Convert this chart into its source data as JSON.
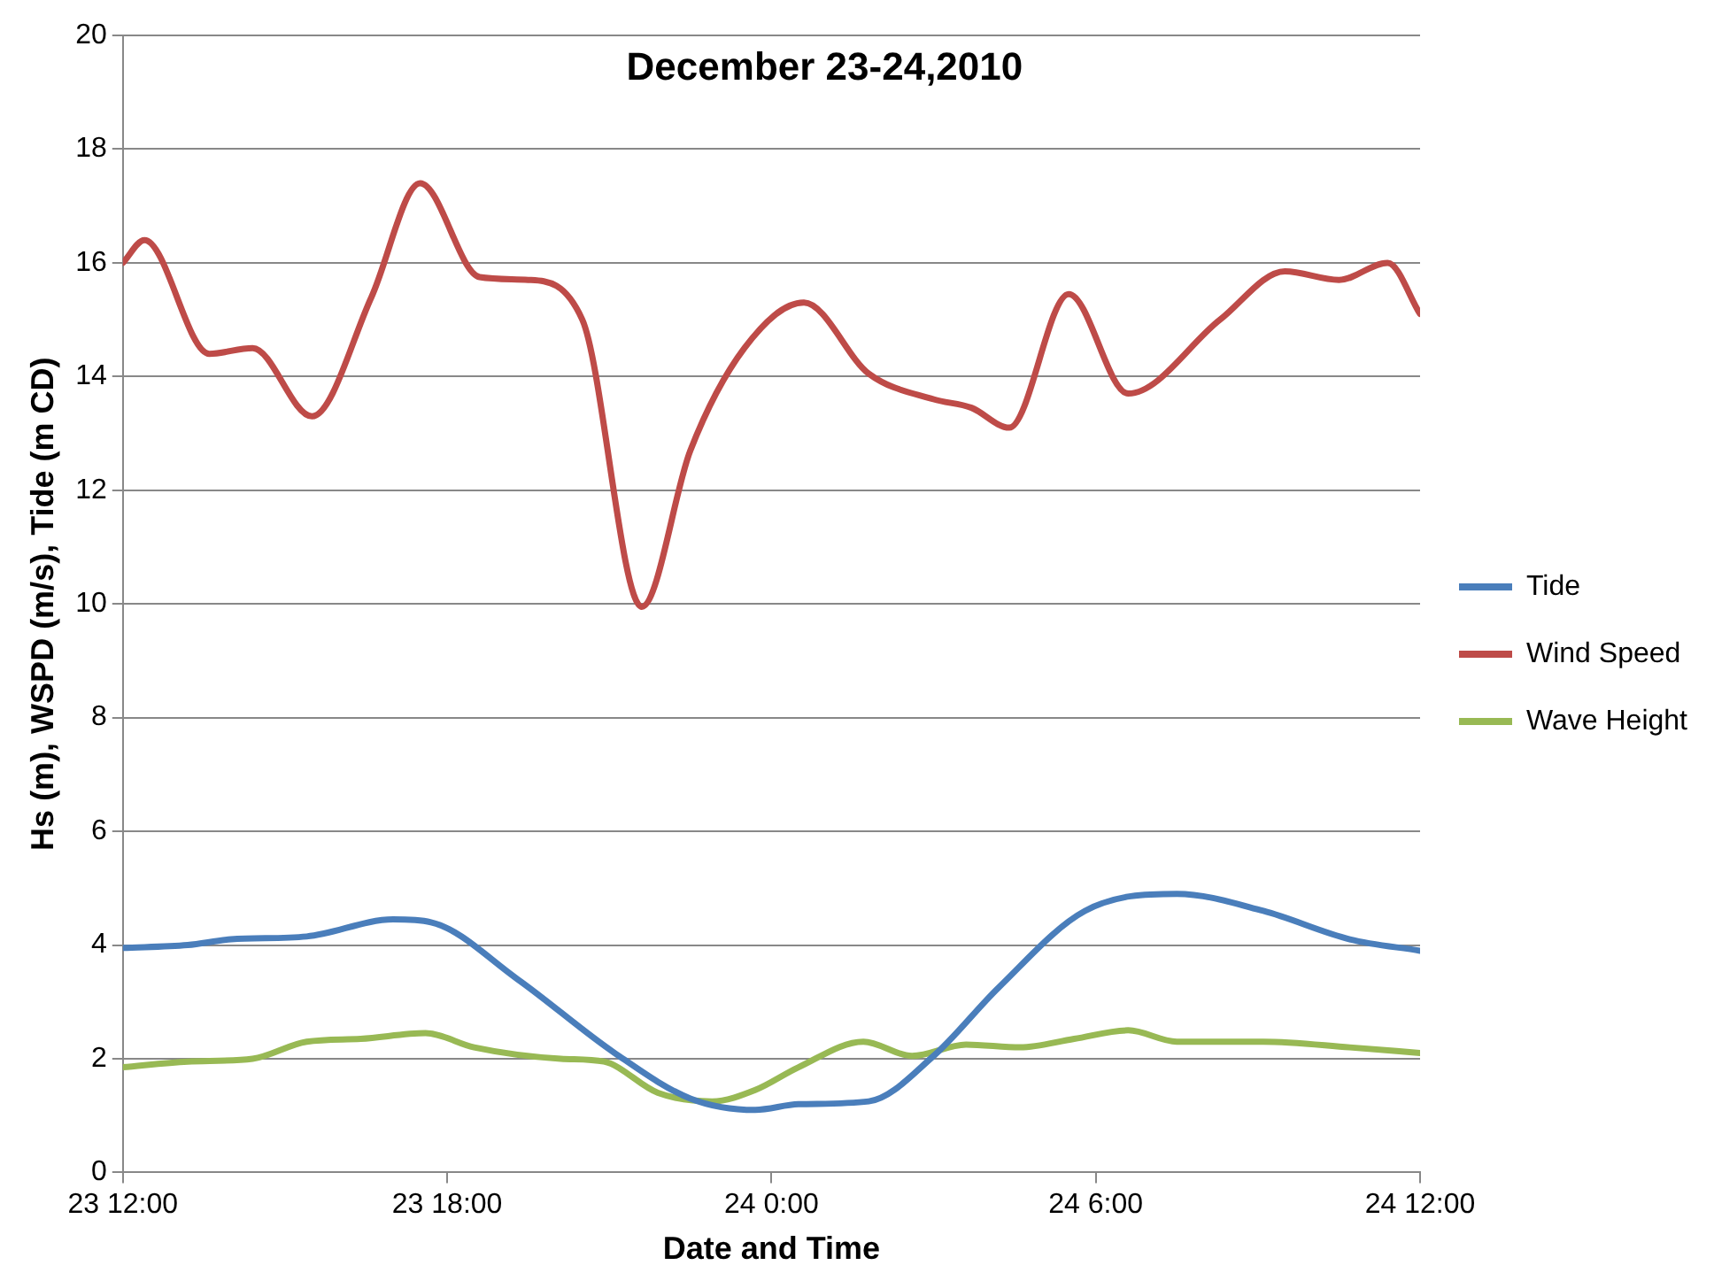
{
  "chart_data": {
    "type": "line",
    "title": "December 23-24,2010",
    "xlabel": "Date and Time",
    "ylabel": "Hs (m), WSPD (m/s), Tide (m CD)",
    "xlim": [
      "2010-12-23T12:00",
      "2010-12-24T12:00"
    ],
    "xticks": [
      {
        "value": "2010-12-23T12:00",
        "label": "23 12:00"
      },
      {
        "value": "2010-12-23T18:00",
        "label": "23 18:00"
      },
      {
        "value": "2010-12-24T00:00",
        "label": "24 0:00"
      },
      {
        "value": "2010-12-24T06:00",
        "label": "24 6:00"
      },
      {
        "value": "2010-12-24T12:00",
        "label": "24 12:00"
      }
    ],
    "ylim": [
      0,
      20
    ],
    "yticks": [
      0,
      2,
      4,
      6,
      8,
      10,
      12,
      14,
      16,
      18,
      20
    ],
    "grid": "y",
    "legend": "right",
    "marker": "none",
    "line_style": "solid",
    "series": [
      {
        "name": "Tide",
        "color": "#4a7ebb",
        "x": [
          "2010-12-23T12:00",
          "2010-12-23T13:12",
          "2010-12-23T14:00",
          "2010-12-23T15:24",
          "2010-12-23T17:00",
          "2010-12-23T17:42",
          "2010-12-23T19:18",
          "2010-12-23T21:06",
          "2010-12-23T22:30",
          "2010-12-23T23:42",
          "2010-12-24T00:30",
          "2010-12-24T01:48",
          "2010-12-24T03:00",
          "2010-12-24T04:12",
          "2010-12-24T05:48",
          "2010-12-24T07:30",
          "2010-12-24T09:06",
          "2010-12-24T10:42",
          "2010-12-24T12:00"
        ],
        "values": [
          3.95,
          4.0,
          4.1,
          4.15,
          4.45,
          4.4,
          3.4,
          2.1,
          1.3,
          1.1,
          1.2,
          1.25,
          2.05,
          3.25,
          4.6,
          4.9,
          4.6,
          4.1,
          3.9
        ]
      },
      {
        "name": "Wind Speed",
        "color": "#be4b48",
        "x": [
          "2010-12-23T12:00",
          "2010-12-23T12:24",
          "2010-12-23T13:36",
          "2010-12-23T14:24",
          "2010-12-23T15:30",
          "2010-12-23T16:36",
          "2010-12-23T17:30",
          "2010-12-23T18:36",
          "2010-12-23T19:30",
          "2010-12-23T20:30",
          "2010-12-23T21:36",
          "2010-12-23T22:30",
          "2010-12-23T23:30",
          "2010-12-24T00:36",
          "2010-12-24T01:48",
          "2010-12-24T03:00",
          "2010-12-24T03:42",
          "2010-12-24T04:24",
          "2010-12-24T05:30",
          "2010-12-24T06:36",
          "2010-12-24T08:18",
          "2010-12-24T09:30",
          "2010-12-24T10:30",
          "2010-12-24T11:24",
          "2010-12-24T12:00"
        ],
        "values": [
          16.0,
          16.4,
          14.4,
          14.5,
          13.3,
          15.4,
          17.4,
          15.75,
          15.7,
          15.0,
          9.95,
          12.7,
          14.5,
          15.3,
          14.05,
          13.6,
          13.45,
          13.1,
          15.45,
          13.7,
          15.0,
          15.85,
          15.7,
          16.0,
          15.1
        ]
      },
      {
        "name": "Wave Height",
        "color": "#98b954",
        "x": [
          "2010-12-23T12:00",
          "2010-12-23T13:12",
          "2010-12-23T14:24",
          "2010-12-23T15:24",
          "2010-12-23T16:24",
          "2010-12-23T17:36",
          "2010-12-23T18:30",
          "2010-12-23T20:06",
          "2010-12-23T20:54",
          "2010-12-23T21:54",
          "2010-12-23T22:54",
          "2010-12-23T23:42",
          "2010-12-24T00:30",
          "2010-12-24T01:42",
          "2010-12-24T02:36",
          "2010-12-24T03:36",
          "2010-12-24T04:36",
          "2010-12-24T05:36",
          "2010-12-24T06:36",
          "2010-12-24T07:30",
          "2010-12-24T09:06",
          "2010-12-24T10:42",
          "2010-12-24T12:00"
        ],
        "values": [
          1.85,
          1.95,
          2.0,
          2.3,
          2.35,
          2.45,
          2.2,
          2.0,
          1.95,
          1.4,
          1.25,
          1.45,
          1.85,
          2.3,
          2.05,
          2.25,
          2.2,
          2.35,
          2.5,
          2.3,
          2.3,
          2.2,
          2.1
        ]
      }
    ]
  }
}
